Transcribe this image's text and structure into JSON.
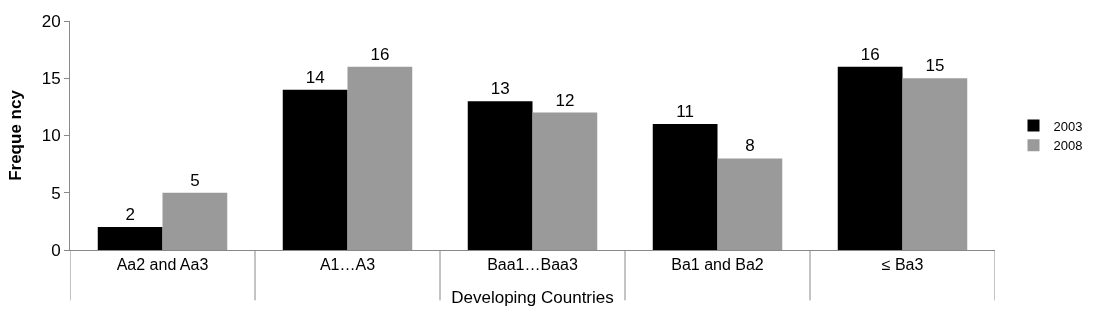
{
  "chart_data": {
    "type": "bar",
    "categories": [
      "Aa2 and Aa3",
      "A1…A3",
      "Baa1…Baa3",
      "Ba1 and Ba2",
      "≤ Ba3"
    ],
    "series": [
      {
        "name": "2003",
        "color": "#000000",
        "values": [
          2,
          14,
          13,
          11,
          16
        ]
      },
      {
        "name": "2008",
        "color": "#9a9a9a",
        "values": [
          5,
          16,
          12,
          8,
          15
        ]
      }
    ],
    "xlabel": "Developing Countries",
    "ylabel": "Freque ncy",
    "ylim": [
      0,
      20
    ],
    "yticks": [
      0,
      5,
      10,
      15,
      20
    ],
    "grid": false,
    "legend": "right",
    "data_labels": true
  }
}
